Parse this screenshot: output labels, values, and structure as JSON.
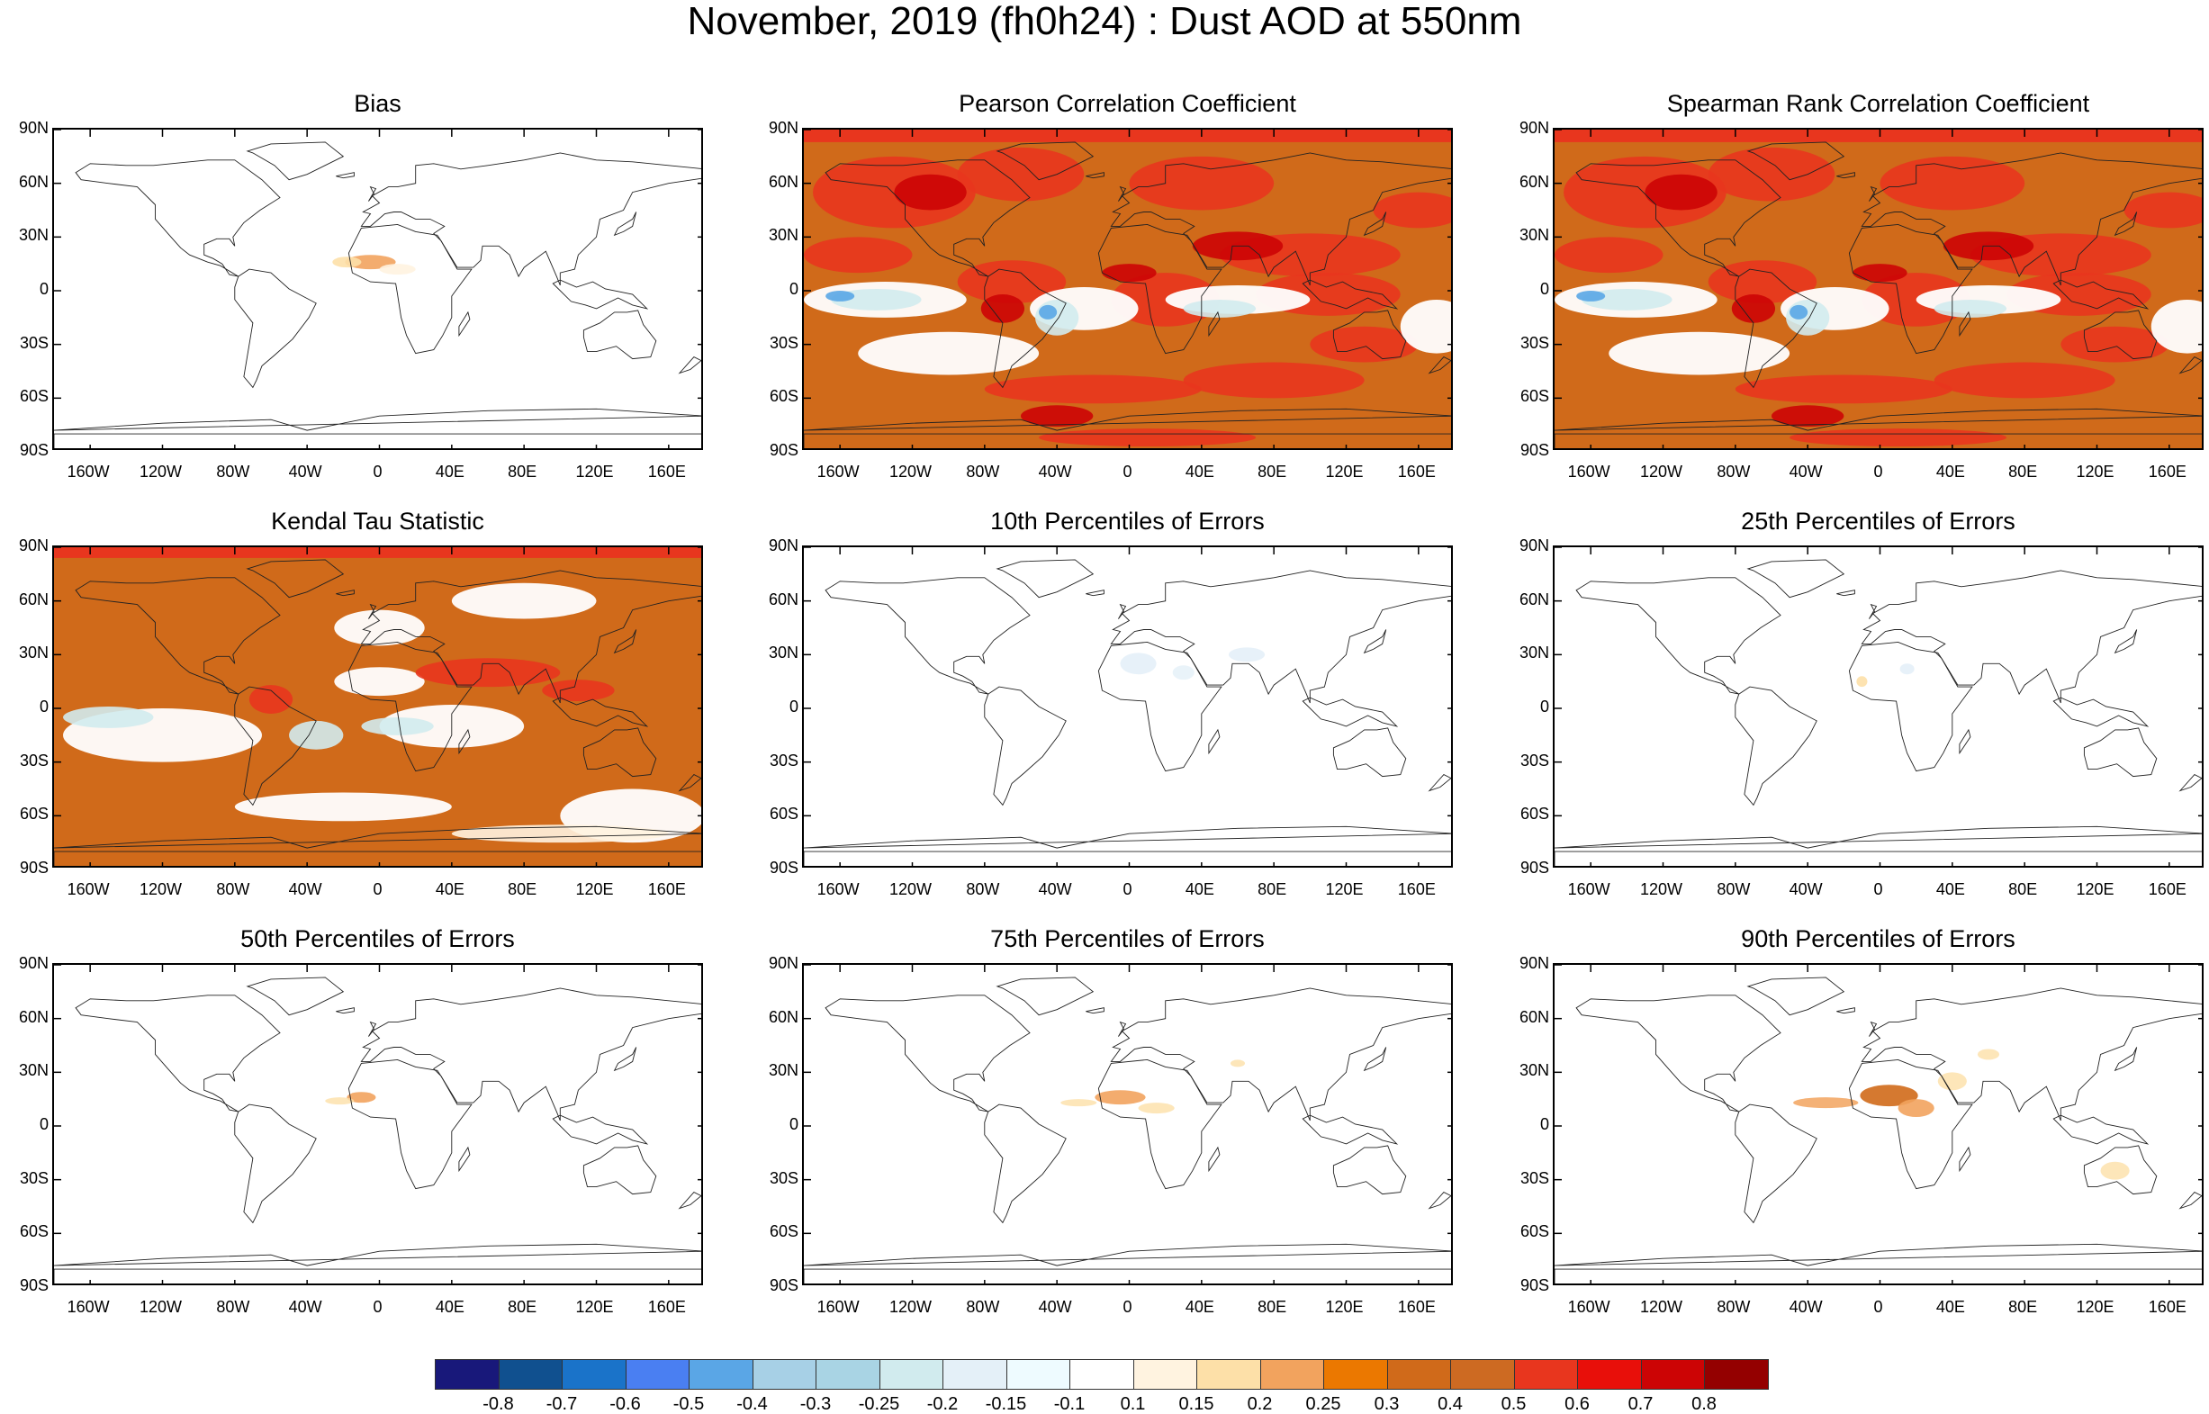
{
  "title": "November, 2019 (fh0h24) : Dust AOD at 550nm",
  "lat_labels": [
    "90N",
    "60N",
    "30N",
    "0",
    "30S",
    "60S",
    "90S"
  ],
  "lon_labels": [
    "160W",
    "120W",
    "80W",
    "40W",
    "0",
    "40E",
    "80E",
    "120E",
    "160E"
  ],
  "panels": [
    {
      "title": "Bias",
      "field": "bias"
    },
    {
      "title": "Pearson Correlation Coefficient",
      "field": "pearson"
    },
    {
      "title": "Spearman Rank Correlation Coefficient",
      "field": "spearman"
    },
    {
      "title": "Kendal Tau Statistic",
      "field": "kendall"
    },
    {
      "title": "10th Percentiles of Errors",
      "field": "p10"
    },
    {
      "title": "25th Percentiles of Errors",
      "field": "p25"
    },
    {
      "title": "50th Percentiles of Errors",
      "field": "p50"
    },
    {
      "title": "75th Percentiles of Errors",
      "field": "p75"
    },
    {
      "title": "90th Percentiles of Errors",
      "field": "p90"
    }
  ],
  "colorbar": {
    "labels": [
      "-0.8",
      "-0.7",
      "-0.6",
      "-0.5",
      "-0.4",
      "-0.3",
      "-0.25",
      "-0.2",
      "-0.15",
      "-0.1",
      "0.1",
      "0.15",
      "0.2",
      "0.25",
      "0.3",
      "0.4",
      "0.5",
      "0.6",
      "0.7",
      "0.8"
    ],
    "colors": [
      "#18187a",
      "#10508f",
      "#1a73c9",
      "#4a7ff2",
      "#5aa6e6",
      "#a7d0e6",
      "#a9d4e4",
      "#d1ebee",
      "#e4f0f8",
      "#eefbff",
      "#ffffff",
      "#fff3e0",
      "#fde0a8",
      "#f2a35e",
      "#eb7800",
      "#d06a1a",
      "#cd6a22",
      "#e8361e",
      "#e80f0a",
      "#cc0405",
      "#940000"
    ]
  }
}
